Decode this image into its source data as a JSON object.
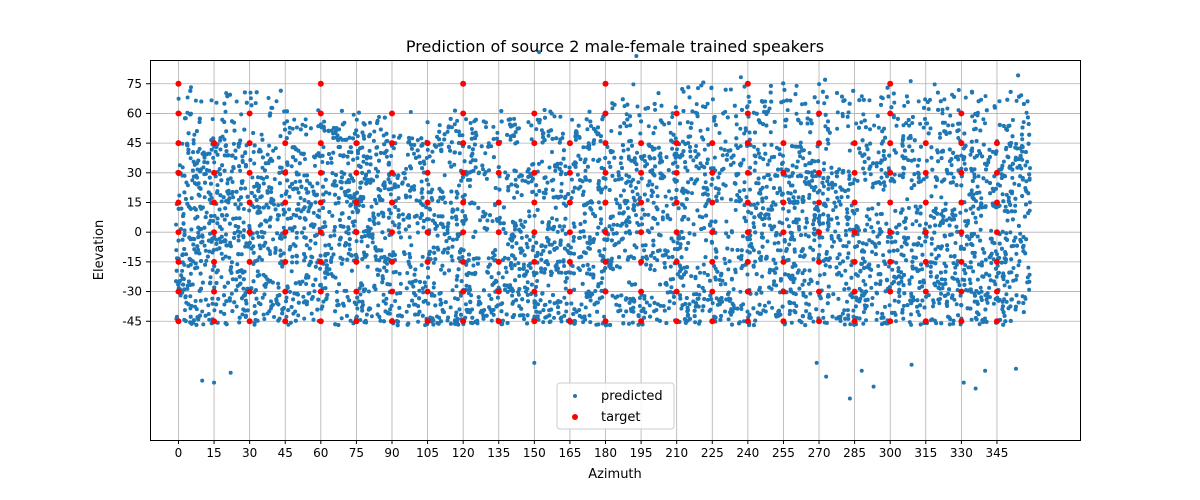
{
  "chart_data": {
    "type": "scatter",
    "title": "Prediction of source 2 male-female trained speakers",
    "xlabel": "Azimuth",
    "ylabel": "Elevation",
    "xlim": [
      -12,
      380
    ],
    "ylim": [
      -105,
      87
    ],
    "xticks": [
      0,
      15,
      30,
      45,
      60,
      75,
      90,
      105,
      120,
      135,
      150,
      165,
      180,
      195,
      210,
      225,
      240,
      255,
      270,
      285,
      300,
      315,
      330,
      345
    ],
    "yticks": [
      -45,
      -30,
      -15,
      0,
      15,
      30,
      45,
      60,
      75
    ],
    "grid": true,
    "legend_position": "lower center",
    "colors": {
      "predicted": "#1f77b4",
      "target": "#ff0000"
    },
    "series": [
      {
        "name": "predicted",
        "marker": "small-dot",
        "note_dense_cloud": true,
        "outliers": [
          [
            10,
            -75
          ],
          [
            15,
            -76
          ],
          [
            22,
            -71
          ],
          [
            150,
            -66
          ],
          [
            269,
            -66
          ],
          [
            273,
            -73
          ],
          [
            283,
            -84
          ],
          [
            288,
            -70
          ],
          [
            293,
            -78
          ],
          [
            309,
            -67
          ],
          [
            331,
            -76
          ],
          [
            336,
            -79
          ],
          [
            340,
            -70
          ],
          [
            353,
            -69
          ],
          [
            152,
            91
          ],
          [
            193,
            89
          ]
        ]
      },
      {
        "name": "target",
        "marker": "dot",
        "azimuths": [
          0,
          15,
          30,
          45,
          60,
          75,
          90,
          105,
          120,
          135,
          150,
          165,
          180,
          195,
          210,
          225,
          240,
          255,
          270,
          285,
          300,
          315,
          330,
          345
        ],
        "elevations": [
          -45,
          -30,
          -15,
          0,
          15,
          30,
          45
        ],
        "extra_points": [
          [
            0,
            60
          ],
          [
            0,
            75
          ],
          [
            30,
            60
          ],
          [
            60,
            60
          ],
          [
            60,
            75
          ],
          [
            90,
            60
          ],
          [
            120,
            60
          ],
          [
            120,
            75
          ],
          [
            150,
            60
          ],
          [
            180,
            60
          ],
          [
            180,
            75
          ],
          [
            210,
            60
          ],
          [
            240,
            60
          ],
          [
            240,
            75
          ],
          [
            270,
            60
          ],
          [
            300,
            60
          ],
          [
            300,
            75
          ],
          [
            330,
            60
          ]
        ]
      }
    ]
  }
}
